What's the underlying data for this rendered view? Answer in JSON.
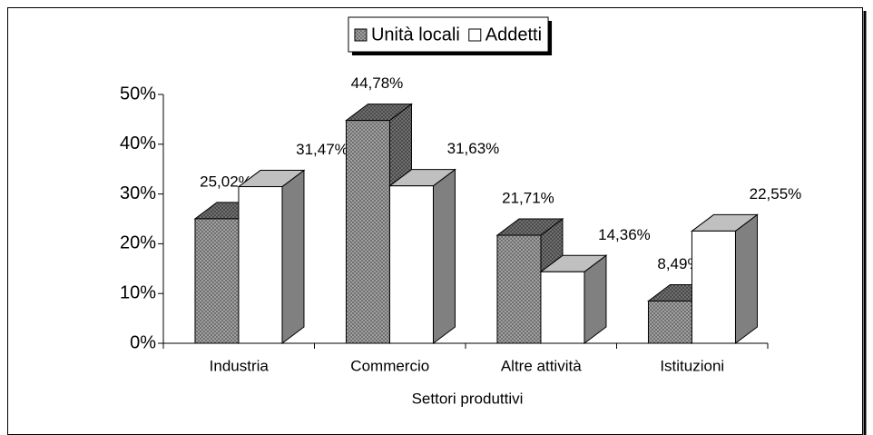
{
  "chart_data": {
    "type": "bar3d",
    "categories": [
      "Industria",
      "Commercio",
      "Altre attività",
      "Istituzioni"
    ],
    "x_label": "Settori produttivi",
    "series": [
      {
        "name": "Unità locali",
        "color": "#8c8c8c",
        "values": [
          25.02,
          44.78,
          21.71,
          8.49
        ],
        "value_labels": [
          "25,02%",
          "44,78%",
          "21,71%",
          "8,49%"
        ]
      },
      {
        "name": "Addetti",
        "color": "#ffffff",
        "values": [
          31.47,
          31.63,
          14.36,
          22.55
        ],
        "value_labels": [
          "31,47%",
          "31,63%",
          "14,36%",
          "22,55%"
        ]
      }
    ],
    "ylim": [
      0,
      50
    ],
    "yticks": [
      {
        "value": 0,
        "label": "0%"
      },
      {
        "value": 10,
        "label": "10%"
      },
      {
        "value": 20,
        "label": "20%"
      },
      {
        "value": 30,
        "label": "30%"
      },
      {
        "value": 40,
        "label": "40%"
      },
      {
        "value": 50,
        "label": "50%"
      }
    ],
    "legend": "top"
  }
}
